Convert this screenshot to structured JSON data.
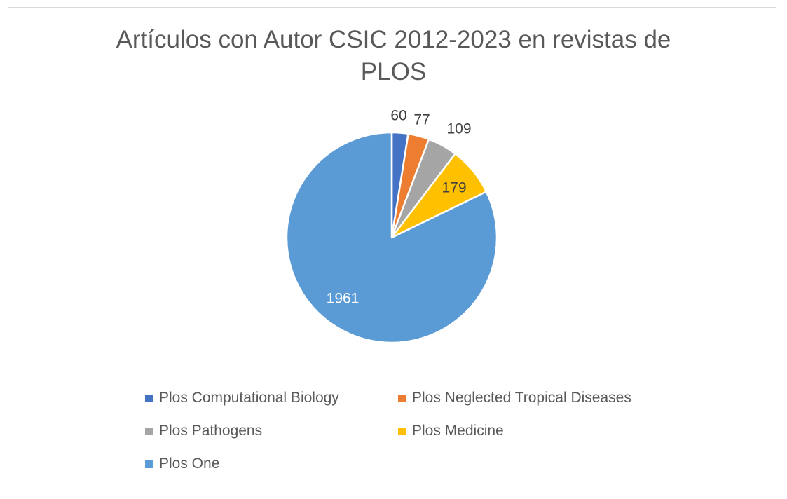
{
  "chart_data": {
    "type": "pie",
    "title": "Artículos con Autor CSIC  2012-2023 en revistas de PLOS",
    "start_angle_deg": 0,
    "direction": "clockwise",
    "slices": [
      {
        "label": "Plos Computational Biology",
        "value": 60,
        "color": "#4472C4",
        "value_label_color": "#404040"
      },
      {
        "label": "Plos Neglected Tropical Diseases",
        "value": 77,
        "color": "#ED7D31",
        "value_label_color": "#404040"
      },
      {
        "label": "Plos Pathogens",
        "value": 109,
        "color": "#A5A5A5",
        "value_label_color": "#404040"
      },
      {
        "label": "Plos Medicine",
        "value": 179,
        "color": "#FFC000",
        "value_label_color": "#404040"
      },
      {
        "label": "Plos One",
        "value": 1961,
        "color": "#5B9BD5",
        "value_label_color": "#ffffff"
      }
    ],
    "legend_position": "bottom"
  }
}
